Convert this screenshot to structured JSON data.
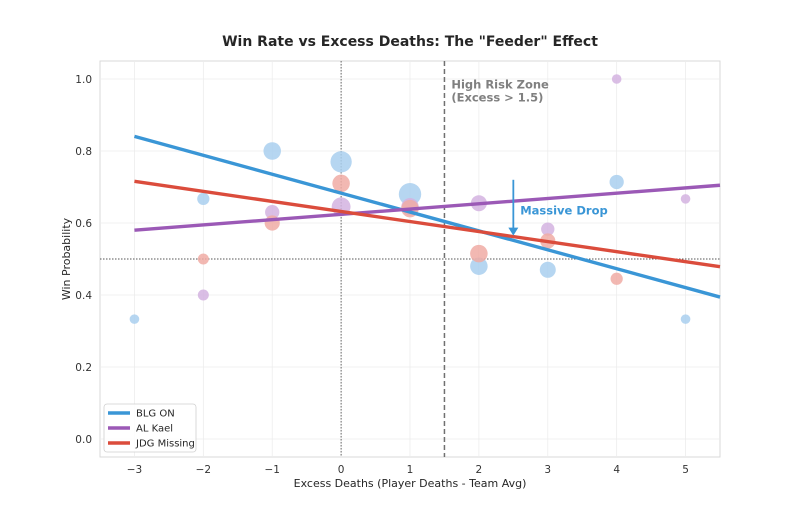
{
  "chart_data": {
    "type": "scatter",
    "title": "Win Rate vs Excess Deaths: The \"Feeder\" Effect",
    "xlabel": "Excess Deaths (Player Deaths - Team Avg)",
    "ylabel": "Win Probability",
    "xlim": [
      -3.5,
      5.5
    ],
    "ylim": [
      -0.05,
      1.05
    ],
    "xticks": [
      -3,
      -2,
      -1,
      0,
      1,
      2,
      3,
      4,
      5
    ],
    "xtick_labels": [
      "−3",
      "−2",
      "−1",
      "0",
      "1",
      "2",
      "3",
      "4",
      "5"
    ],
    "yticks": [
      0.0,
      0.2,
      0.4,
      0.6,
      0.8,
      1.0
    ],
    "ytick_labels": [
      "0.0",
      "0.2",
      "0.4",
      "0.6",
      "0.8",
      "1.0"
    ],
    "grid": true,
    "legend_position": "bottom-left",
    "reference_lines": {
      "vertical_dotted_x": 0,
      "horizontal_dotted_y": 0.5,
      "vertical_dashed_x": 1.5
    },
    "series": [
      {
        "name": "BLG ON",
        "color": "#3a96d6",
        "point_color": "#a9cfee",
        "trend": {
          "slope": -0.0525,
          "intercept": 0.683
        },
        "points": [
          {
            "x": -3,
            "y": 0.333,
            "size": 1
          },
          {
            "x": -2,
            "y": 0.667,
            "size": 2
          },
          {
            "x": -1,
            "y": 0.8,
            "size": 5
          },
          {
            "x": 0,
            "y": 0.77,
            "size": 8
          },
          {
            "x": 1,
            "y": 0.68,
            "size": 9
          },
          {
            "x": 2,
            "y": 0.48,
            "size": 5
          },
          {
            "x": 3,
            "y": 0.47,
            "size": 4
          },
          {
            "x": 4,
            "y": 0.714,
            "size": 3
          },
          {
            "x": 5,
            "y": 0.333,
            "size": 1
          }
        ]
      },
      {
        "name": "AL Kael",
        "color": "#9b59b6",
        "point_color": "#d4b3e0",
        "trend": {
          "slope": 0.0147,
          "intercept": 0.624
        },
        "points": [
          {
            "x": -2,
            "y": 0.4,
            "size": 1.5
          },
          {
            "x": -1,
            "y": 0.63,
            "size": 3
          },
          {
            "x": 0,
            "y": 0.645,
            "size": 6
          },
          {
            "x": 1,
            "y": 0.645,
            "size": 5
          },
          {
            "x": 2,
            "y": 0.655,
            "size": 4
          },
          {
            "x": 3,
            "y": 0.583,
            "size": 2.5
          },
          {
            "x": 4,
            "y": 1.0,
            "size": 1
          },
          {
            "x": 5,
            "y": 0.667,
            "size": 1
          }
        ]
      },
      {
        "name": "JDG Missing",
        "color": "#db4c3c",
        "point_color": "#f0aba5",
        "trend": {
          "slope": -0.0279,
          "intercept": 0.632
        },
        "points": [
          {
            "x": -2,
            "y": 0.5,
            "size": 1.5
          },
          {
            "x": -1,
            "y": 0.6,
            "size": 3.5
          },
          {
            "x": 0,
            "y": 0.71,
            "size": 5
          },
          {
            "x": 1,
            "y": 0.64,
            "size": 5
          },
          {
            "x": 2,
            "y": 0.515,
            "size": 5
          },
          {
            "x": 3,
            "y": 0.55,
            "size": 3.5
          },
          {
            "x": 4,
            "y": 0.445,
            "size": 2
          }
        ]
      }
    ],
    "annotations": [
      {
        "text_lines": [
          "High Risk Zone",
          "(Excess > 1.5)"
        ],
        "x": 1.6,
        "y": 0.99,
        "color": "#808080"
      },
      {
        "text": "Massive Drop",
        "x": 2.6,
        "y": 0.635,
        "color": "#3a96d6",
        "arrow_from": [
          2.5,
          0.72
        ],
        "arrow_to": [
          2.5,
          0.565
        ]
      }
    ]
  }
}
